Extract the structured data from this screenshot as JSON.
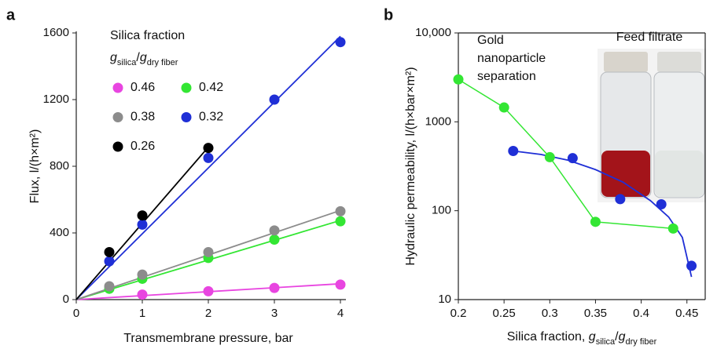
{
  "chart_data": [
    {
      "type": "scatter",
      "panel_label": "a",
      "xlabel": "Transmembrane pressure, bar",
      "ylabel": "Flux, l/(h×m²)",
      "legend_title": "Silica fraction",
      "legend_formula": [
        {
          "text": "g",
          "italic": true
        },
        {
          "text": "silica",
          "sub": true
        },
        {
          "text": "/"
        },
        {
          "text": "g",
          "italic": true
        },
        {
          "text": "dry fiber",
          "sub": true
        }
      ],
      "xlim": [
        0,
        4
      ],
      "xticks": [
        0,
        1,
        2,
        3,
        4
      ],
      "ylim": [
        0,
        1600
      ],
      "yticks": [
        0,
        400,
        800,
        1200,
        1600
      ],
      "series": [
        {
          "name": "0.46",
          "color": "#e845e0",
          "x": [
            1,
            2,
            3,
            4
          ],
          "values": [
            30,
            50,
            70,
            90
          ],
          "fit_x": [
            0,
            4
          ],
          "fit_values": [
            0,
            95
          ]
        },
        {
          "name": "0.42",
          "color": "#33e633",
          "x": [
            0.5,
            1,
            2,
            3,
            4
          ],
          "values": [
            65,
            125,
            250,
            360,
            470
          ],
          "fit_x": [
            0,
            4
          ],
          "fit_values": [
            0,
            475
          ]
        },
        {
          "name": "0.38",
          "color": "#8c8c8c",
          "x": [
            0.5,
            1,
            2,
            3,
            4
          ],
          "values": [
            80,
            150,
            285,
            415,
            530
          ],
          "fit_x": [
            0,
            4
          ],
          "fit_values": [
            0,
            535
          ]
        },
        {
          "name": "0.32",
          "color": "#1f2fd6",
          "x": [
            0.5,
            1,
            2,
            3,
            4
          ],
          "values": [
            230,
            450,
            850,
            1200,
            1545
          ],
          "fit_x": [
            0,
            4
          ],
          "fit_values": [
            0,
            1580
          ]
        },
        {
          "name": "0.26",
          "color": "#000000",
          "x": [
            0.5,
            1,
            2
          ],
          "values": [
            285,
            505,
            910
          ],
          "fit_x": [
            0,
            2
          ],
          "fit_values": [
            0,
            915
          ]
        }
      ]
    },
    {
      "type": "scatter",
      "panel_label": "b",
      "log_y": true,
      "frame": true,
      "xlabel": [
        {
          "text": "Silica fraction, "
        },
        {
          "text": "g",
          "italic": true
        },
        {
          "text": "silica",
          "sub": true
        },
        {
          "text": "/"
        },
        {
          "text": "g",
          "italic": true
        },
        {
          "text": "dry fiber",
          "sub": true
        }
      ],
      "ylabel": "Hydraulic permeability, l/(h×bar×m²)",
      "annotations": [
        "Gold",
        "nanoparticle",
        "separation",
        "Feed filtrate"
      ],
      "xlim": [
        0.2,
        0.47
      ],
      "xticks": [
        0.2,
        0.25,
        0.3,
        0.35,
        0.4,
        0.45
      ],
      "ylim": [
        10,
        10000
      ],
      "yticks": [
        10,
        100,
        1000,
        {
          "value": 10000,
          "label": "10,000"
        }
      ],
      "series": [
        {
          "color": "#33e633",
          "connect": true,
          "x": [
            0.2,
            0.25,
            0.3,
            0.35,
            0.435
          ],
          "values": [
            3000,
            1450,
            400,
            75,
            63
          ]
        },
        {
          "color": "#1f2fd6",
          "x": [
            0.26,
            0.325,
            0.377,
            0.422,
            0.455
          ],
          "values": [
            470,
            390,
            135,
            118,
            24
          ],
          "fit_x": [
            0.26,
            0.29,
            0.32,
            0.35,
            0.38,
            0.41,
            0.43,
            0.445,
            0.455
          ],
          "fit_values": [
            470,
            430,
            370,
            290,
            210,
            130,
            85,
            50,
            18
          ]
        }
      ]
    }
  ]
}
